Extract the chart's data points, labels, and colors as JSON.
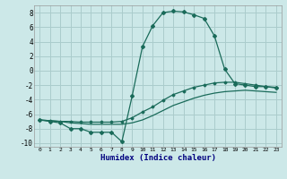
{
  "xlabel": "Humidex (Indice chaleur)",
  "background_color": "#cce8e8",
  "grid_color": "#aacccc",
  "line_color": "#1a6b5a",
  "xlabel_color": "#000080",
  "xlim": [
    -0.5,
    23.5
  ],
  "ylim": [
    -10.5,
    9.0
  ],
  "xticks": [
    0,
    1,
    2,
    3,
    4,
    5,
    6,
    7,
    8,
    9,
    10,
    11,
    12,
    13,
    14,
    15,
    16,
    17,
    18,
    19,
    20,
    21,
    22,
    23
  ],
  "yticks": [
    -10,
    -8,
    -6,
    -4,
    -2,
    0,
    2,
    4,
    6,
    8
  ],
  "line1_x": [
    0,
    1,
    2,
    3,
    4,
    5,
    6,
    7,
    8,
    9,
    10,
    11,
    12,
    13,
    14,
    15,
    16,
    17,
    18,
    19,
    20,
    21,
    22,
    23
  ],
  "line1_y": [
    -6.8,
    -7.0,
    -7.2,
    -8.0,
    -8.0,
    -8.5,
    -8.5,
    -8.5,
    -9.8,
    -3.5,
    3.3,
    6.2,
    8.0,
    8.2,
    8.1,
    7.7,
    7.2,
    4.8,
    0.2,
    -1.8,
    -2.0,
    -2.2,
    -2.2,
    -2.3
  ],
  "line2_x": [
    0,
    1,
    2,
    3,
    4,
    5,
    6,
    7,
    8,
    9,
    10,
    11,
    12,
    13,
    14,
    15,
    16,
    17,
    18,
    19,
    20,
    21,
    22,
    23
  ],
  "line2_y": [
    -6.8,
    -6.9,
    -7.0,
    -7.0,
    -7.1,
    -7.1,
    -7.1,
    -7.1,
    -7.0,
    -6.5,
    -5.7,
    -5.0,
    -4.1,
    -3.3,
    -2.8,
    -2.3,
    -2.0,
    -1.7,
    -1.6,
    -1.6,
    -1.8,
    -2.0,
    -2.2,
    -2.4
  ],
  "line3_x": [
    0,
    1,
    2,
    3,
    4,
    5,
    6,
    7,
    8,
    9,
    10,
    11,
    12,
    13,
    14,
    15,
    16,
    17,
    18,
    19,
    20,
    21,
    22,
    23
  ],
  "line3_y": [
    -6.8,
    -6.9,
    -7.0,
    -7.2,
    -7.3,
    -7.4,
    -7.4,
    -7.4,
    -7.4,
    -7.2,
    -6.8,
    -6.2,
    -5.5,
    -4.8,
    -4.3,
    -3.8,
    -3.4,
    -3.1,
    -2.9,
    -2.8,
    -2.7,
    -2.8,
    -2.9,
    -3.0
  ]
}
